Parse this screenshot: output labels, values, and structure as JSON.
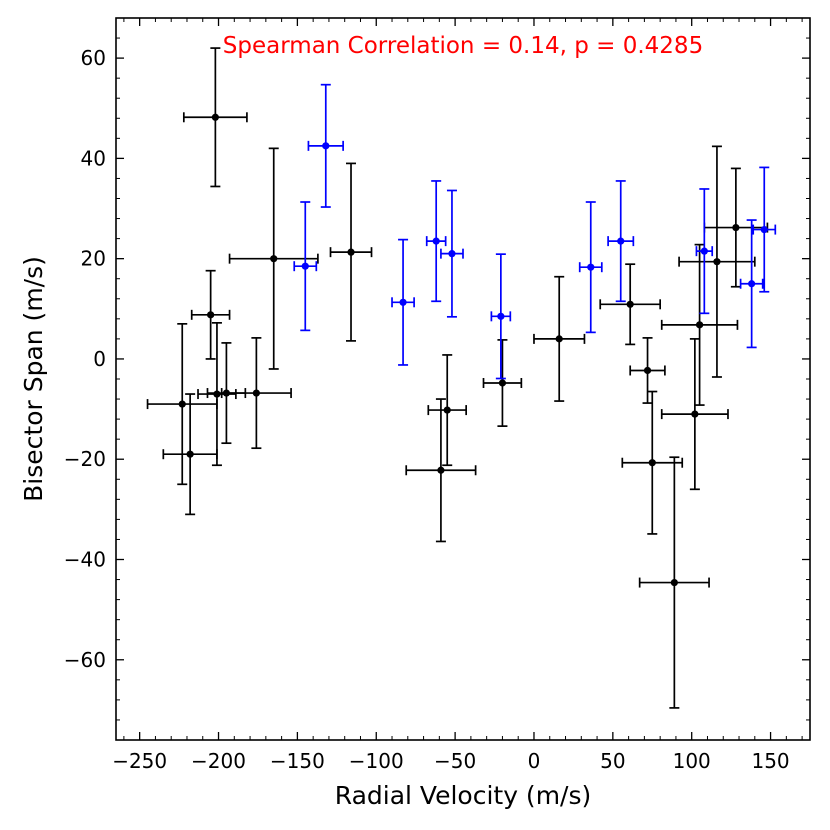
{
  "chart_data": {
    "type": "scatter",
    "title": "",
    "xlabel": "Radial Velocity (m/s)",
    "ylabel": "Bisector Span (m/s)",
    "xlim": [
      -265,
      175
    ],
    "ylim": [
      -76,
      68
    ],
    "x_ticks": [
      -250,
      -200,
      -150,
      -100,
      -50,
      0,
      50,
      100,
      150
    ],
    "y_ticks": [
      -60,
      -40,
      -20,
      0,
      20,
      40,
      60
    ],
    "x_tick_labels": [
      "−250",
      "−200",
      "−150",
      "−100",
      "−50",
      "0",
      "50",
      "100",
      "150"
    ],
    "y_tick_labels": [
      "−60",
      "−40",
      "−20",
      "0",
      "20",
      "40",
      "60"
    ],
    "annotation": {
      "text": "Spearman Correlation = 0.14, p = 0.4285",
      "color": "#ff0000"
    },
    "series": [
      {
        "name": "black",
        "color": "#000000",
        "points": [
          {
            "x": -202,
            "y": 48.2,
            "xerr": 20,
            "yerr": 13.8
          },
          {
            "x": -165,
            "y": 20.0,
            "xerr": 28,
            "yerr": 22.0
          },
          {
            "x": -116,
            "y": 21.3,
            "xerr": 13,
            "yerr": 17.7
          },
          {
            "x": -205,
            "y": 8.8,
            "xerr": 12,
            "yerr": 8.8
          },
          {
            "x": -223,
            "y": -9.0,
            "xerr": 22,
            "yerr": 16.0
          },
          {
            "x": -218,
            "y": -19.0,
            "xerr": 17,
            "yerr": 12.0
          },
          {
            "x": -201,
            "y": -7.0,
            "xerr": 12,
            "yerr": 14.2
          },
          {
            "x": -195,
            "y": -6.8,
            "xerr": 12,
            "yerr": 10.0
          },
          {
            "x": -176,
            "y": -6.8,
            "xerr": 22,
            "yerr": 11.0
          },
          {
            "x": -55,
            "y": -10.2,
            "xerr": 12,
            "yerr": 11.0
          },
          {
            "x": -59,
            "y": -22.2,
            "xerr": 22,
            "yerr": 14.2
          },
          {
            "x": -20,
            "y": -4.8,
            "xerr": 12,
            "yerr": 8.6
          },
          {
            "x": 16,
            "y": 4.0,
            "xerr": 16,
            "yerr": 12.4
          },
          {
            "x": 61,
            "y": 10.9,
            "xerr": 19,
            "yerr": 8.0
          },
          {
            "x": 72,
            "y": -2.3,
            "xerr": 11,
            "yerr": 6.5
          },
          {
            "x": 75,
            "y": -20.7,
            "xerr": 19,
            "yerr": 14.2
          },
          {
            "x": 89,
            "y": -44.6,
            "xerr": 22,
            "yerr": 25.0
          },
          {
            "x": 102,
            "y": -11.0,
            "xerr": 21,
            "yerr": 15.0
          },
          {
            "x": 105,
            "y": 6.8,
            "xerr": 24,
            "yerr": 16.0
          },
          {
            "x": 116,
            "y": 19.4,
            "xerr": 24,
            "yerr": 23.0
          },
          {
            "x": 128,
            "y": 26.2,
            "xerr": 20,
            "yerr": 11.8
          }
        ]
      },
      {
        "name": "blue",
        "color": "#0000ff",
        "points": [
          {
            "x": -132,
            "y": 42.5,
            "xerr": 11,
            "yerr": 12.2
          },
          {
            "x": -145,
            "y": 18.5,
            "xerr": 7,
            "yerr": 12.8
          },
          {
            "x": -83,
            "y": 11.3,
            "xerr": 7,
            "yerr": 12.5
          },
          {
            "x": -62,
            "y": 23.5,
            "xerr": 6,
            "yerr": 12.0
          },
          {
            "x": -52,
            "y": 21.0,
            "xerr": 7,
            "yerr": 12.6
          },
          {
            "x": -21,
            "y": 8.5,
            "xerr": 6,
            "yerr": 12.4
          },
          {
            "x": 36,
            "y": 18.3,
            "xerr": 7,
            "yerr": 13.0
          },
          {
            "x": 55,
            "y": 23.5,
            "xerr": 8,
            "yerr": 12.0
          },
          {
            "x": 108,
            "y": 21.5,
            "xerr": 5,
            "yerr": 12.4
          },
          {
            "x": 138,
            "y": 15.0,
            "xerr": 7,
            "yerr": 12.7
          },
          {
            "x": 146,
            "y": 25.8,
            "xerr": 7,
            "yerr": 12.4
          }
        ]
      }
    ]
  }
}
